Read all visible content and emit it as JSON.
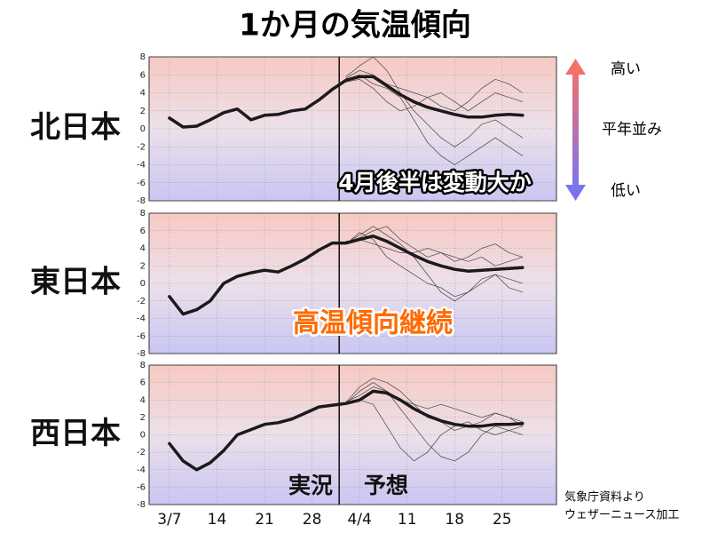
{
  "title": "1か月の気温傾向",
  "scale_legend": {
    "high": "高い",
    "normal": "平年並み",
    "low": "低い"
  },
  "source": [
    "気象庁資料より",
    "ウェザーニュース加工"
  ],
  "chart_data": [
    {
      "type": "line",
      "label": "北日本",
      "xlim": [
        -3,
        57
      ],
      "ylim": [
        -8,
        8
      ],
      "divider_x": 25,
      "yticks": [
        -8,
        -6,
        -4,
        -2,
        0,
        2,
        4,
        6,
        8
      ],
      "xticks": [
        0,
        7,
        14,
        21,
        28,
        35,
        42,
        49
      ],
      "grid": true,
      "x": [
        0,
        2,
        4,
        6,
        8,
        10,
        12,
        14,
        16,
        18,
        20,
        22,
        24,
        26,
        28,
        30,
        32,
        34,
        36,
        38,
        40,
        42,
        44,
        46,
        48,
        50,
        52
      ],
      "annotations": [
        "4月後半は変動大か"
      ],
      "series": [
        {
          "color": "#1a1a1a",
          "width": 3.5,
          "values": [
            1.2,
            0.2,
            0.3,
            1.0,
            1.8,
            2.2,
            1.0,
            1.5,
            1.6,
            2.0,
            2.2,
            3.2,
            4.4,
            5.4,
            5.8,
            5.8,
            4.8,
            3.8,
            3.0,
            2.4,
            2.0,
            1.6,
            1.3,
            1.3,
            1.5,
            1.6,
            1.5
          ]
        },
        {
          "color": "#444444",
          "width": 0.7,
          "values": [
            null,
            null,
            null,
            null,
            null,
            null,
            null,
            null,
            null,
            null,
            null,
            null,
            null,
            5.8,
            7.0,
            8.0,
            6.5,
            4.0,
            2.0,
            0.5,
            -1.0,
            -2.0,
            -1.0,
            0.5,
            1.0,
            0,
            -1
          ]
        },
        {
          "color": "#444444",
          "width": 0.7,
          "values": [
            null,
            null,
            null,
            null,
            null,
            null,
            null,
            null,
            null,
            null,
            null,
            null,
            null,
            5.2,
            5.5,
            4.5,
            3.0,
            2.0,
            2.5,
            3.5,
            4.0,
            3.0,
            2.0,
            3.0,
            4.0,
            3.5,
            3.0
          ]
        },
        {
          "color": "#444444",
          "width": 0.7,
          "values": [
            null,
            null,
            null,
            null,
            null,
            null,
            null,
            null,
            null,
            null,
            null,
            null,
            null,
            5.5,
            6.0,
            5.0,
            4.5,
            3.5,
            1.0,
            -1.5,
            -3.0,
            -4.0,
            -3.0,
            -2.0,
            -1.0,
            -2.0,
            -3.0
          ]
        },
        {
          "color": "#444444",
          "width": 0.7,
          "values": [
            null,
            null,
            null,
            null,
            null,
            null,
            null,
            null,
            null,
            null,
            null,
            null,
            null,
            5.6,
            6.5,
            6.0,
            5.0,
            4.5,
            4.0,
            3.5,
            2.5,
            2.0,
            3.0,
            4.5,
            5.5,
            5.0,
            4.0
          ]
        }
      ]
    },
    {
      "type": "line",
      "label": "東日本",
      "xlim": [
        -3,
        57
      ],
      "ylim": [
        -8,
        8
      ],
      "divider_x": 25,
      "yticks": [
        -8,
        -6,
        -4,
        -2,
        0,
        2,
        4,
        6,
        8
      ],
      "xticks": [
        0,
        7,
        14,
        21,
        28,
        35,
        42,
        49
      ],
      "grid": true,
      "x": [
        0,
        2,
        4,
        6,
        8,
        10,
        12,
        14,
        16,
        18,
        20,
        22,
        24,
        26,
        28,
        30,
        32,
        34,
        36,
        38,
        40,
        42,
        44,
        46,
        48,
        50,
        52
      ],
      "annotations": [
        "高温傾向継続"
      ],
      "series": [
        {
          "color": "#1a1a1a",
          "width": 3.5,
          "values": [
            -1.5,
            -3.5,
            -3.0,
            -2.0,
            0,
            0.8,
            1.2,
            1.5,
            1.3,
            2.0,
            2.8,
            3.8,
            4.6,
            4.6,
            5.0,
            5.4,
            4.8,
            4.0,
            3.2,
            2.5,
            2.0,
            1.6,
            1.4,
            1.5,
            1.6,
            1.7,
            1.8
          ]
        },
        {
          "color": "#444444",
          "width": 0.7,
          "values": [
            null,
            null,
            null,
            null,
            null,
            null,
            null,
            null,
            null,
            null,
            null,
            null,
            null,
            4.6,
            5.5,
            6.5,
            5.5,
            4.5,
            3.0,
            1.0,
            -1.0,
            -2.0,
            -1.0,
            0,
            1.0,
            0.5,
            0
          ]
        },
        {
          "color": "#444444",
          "width": 0.7,
          "values": [
            null,
            null,
            null,
            null,
            null,
            null,
            null,
            null,
            null,
            null,
            null,
            null,
            null,
            4.8,
            5.0,
            4.5,
            4.0,
            3.5,
            3.5,
            4.0,
            3.5,
            2.5,
            3.0,
            4.0,
            4.5,
            3.5,
            3.0
          ]
        },
        {
          "color": "#444444",
          "width": 0.7,
          "values": [
            null,
            null,
            null,
            null,
            null,
            null,
            null,
            null,
            null,
            null,
            null,
            null,
            null,
            4.5,
            5.8,
            5.0,
            3.0,
            2.0,
            1.0,
            0,
            -0.5,
            -1.5,
            -1.0,
            0.5,
            1.0,
            -0.5,
            -1.0
          ]
        },
        {
          "color": "#444444",
          "width": 0.7,
          "values": [
            null,
            null,
            null,
            null,
            null,
            null,
            null,
            null,
            null,
            null,
            null,
            null,
            null,
            4.7,
            5.2,
            6.0,
            6.5,
            5.0,
            4.0,
            3.0,
            3.5,
            3.0,
            2.5,
            3.0,
            2.0,
            2.5,
            3.0
          ]
        }
      ]
    },
    {
      "type": "line",
      "label": "西日本",
      "xlim": [
        -3,
        57
      ],
      "ylim": [
        -8,
        8
      ],
      "divider_x": 25,
      "yticks": [
        -8,
        -6,
        -4,
        -2,
        0,
        2,
        4,
        6,
        8
      ],
      "xticks": [
        {
          "value": 0,
          "label": "3/7"
        },
        {
          "value": 7,
          "label": "14"
        },
        {
          "value": 14,
          "label": "21"
        },
        {
          "value": 21,
          "label": "28"
        },
        {
          "value": 28,
          "label": "4/4"
        },
        {
          "value": 35,
          "label": "11"
        },
        {
          "value": 42,
          "label": "18"
        },
        {
          "value": 49,
          "label": "25"
        }
      ],
      "grid": true,
      "x": [
        0,
        2,
        4,
        6,
        8,
        10,
        12,
        14,
        16,
        18,
        20,
        22,
        24,
        26,
        28,
        30,
        32,
        34,
        36,
        38,
        40,
        42,
        44,
        46,
        48,
        50,
        52
      ],
      "annotations": [
        "実況",
        "予想"
      ],
      "series": [
        {
          "color": "#1a1a1a",
          "width": 3.5,
          "values": [
            -1,
            -3,
            -4,
            -3.2,
            -1.8,
            0,
            0.6,
            1.2,
            1.4,
            1.8,
            2.5,
            3.2,
            3.4,
            3.6,
            4.0,
            5.0,
            4.8,
            4.0,
            3.0,
            2.2,
            1.6,
            1.2,
            1.0,
            1.0,
            1.2,
            1.2,
            1.3
          ]
        },
        {
          "color": "#444444",
          "width": 0.7,
          "values": [
            null,
            null,
            null,
            null,
            null,
            null,
            null,
            null,
            null,
            null,
            null,
            null,
            null,
            3.6,
            5.0,
            6.0,
            5.0,
            3.0,
            1.0,
            -1.0,
            -2.5,
            -3.0,
            -2.0,
            0,
            1.0,
            0.5,
            0
          ]
        },
        {
          "color": "#444444",
          "width": 0.7,
          "values": [
            null,
            null,
            null,
            null,
            null,
            null,
            null,
            null,
            null,
            null,
            null,
            null,
            null,
            3.8,
            4.5,
            5.5,
            5.0,
            4.0,
            3.5,
            3.0,
            3.5,
            3.0,
            2.5,
            2.0,
            2.5,
            2.0,
            1.5
          ]
        },
        {
          "color": "#444444",
          "width": 0.7,
          "values": [
            null,
            null,
            null,
            null,
            null,
            null,
            null,
            null,
            null,
            null,
            null,
            null,
            null,
            3.5,
            4.0,
            3.5,
            1.0,
            -1.5,
            -3.0,
            -2.0,
            0,
            1.0,
            1.5,
            0.5,
            0,
            0.5,
            1.0
          ]
        },
        {
          "color": "#444444",
          "width": 0.7,
          "values": [
            null,
            null,
            null,
            null,
            null,
            null,
            null,
            null,
            null,
            null,
            null,
            null,
            null,
            3.7,
            5.5,
            6.5,
            6.0,
            5.0,
            3.5,
            2.0,
            1.5,
            0.5,
            1.0,
            1.5,
            2.5,
            2.0,
            1.0
          ]
        }
      ]
    }
  ]
}
